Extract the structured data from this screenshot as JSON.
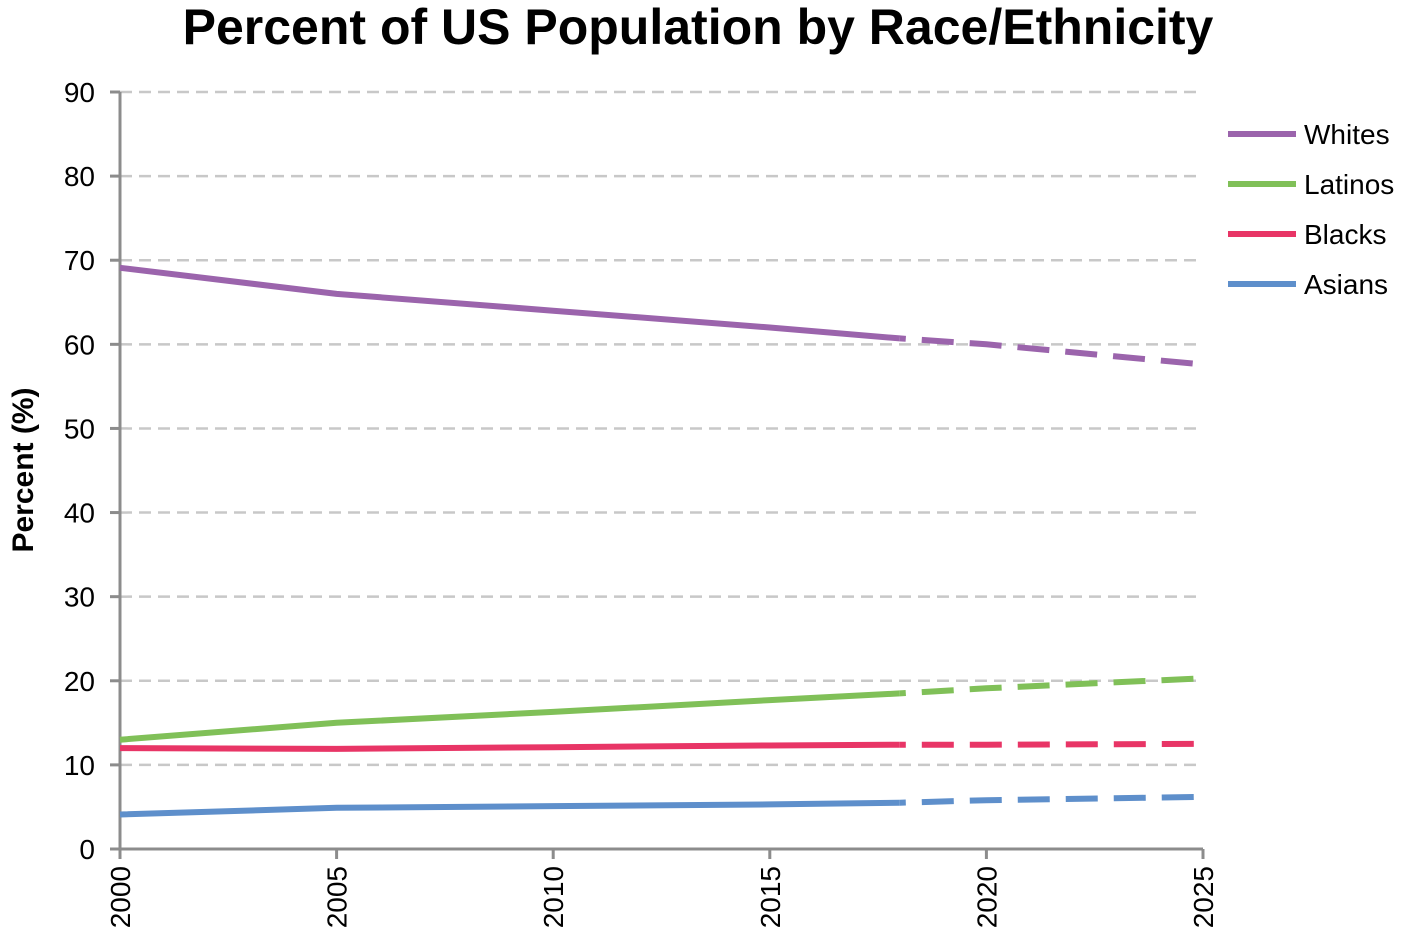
{
  "chart_data": {
    "type": "line",
    "title": "Percent of US Population by Race/Ethnicity",
    "xlabel": "",
    "ylabel": "Percent (%)",
    "xlim": [
      2000,
      2025
    ],
    "ylim": [
      0,
      90
    ],
    "x_ticks": [
      2000,
      2005,
      2010,
      2015,
      2020,
      2025
    ],
    "y_ticks": [
      0,
      10,
      20,
      30,
      40,
      50,
      60,
      70,
      80,
      90
    ],
    "grid": "horizontal-dashed",
    "legend_placement": "top-right",
    "projection_start": 2018,
    "series": [
      {
        "name": "Whites",
        "color": "#9B64AC",
        "x": [
          2000,
          2005,
          2010,
          2015,
          2018,
          2020,
          2025
        ],
        "values": [
          69.1,
          66.0,
          64.0,
          62.0,
          60.7,
          60.0,
          57.6
        ]
      },
      {
        "name": "Latinos",
        "color": "#80C058",
        "x": [
          2000,
          2005,
          2010,
          2015,
          2018,
          2020,
          2025
        ],
        "values": [
          13.0,
          15.0,
          16.3,
          17.7,
          18.5,
          19.1,
          20.3
        ]
      },
      {
        "name": "Blacks",
        "color": "#E83566",
        "x": [
          2000,
          2005,
          2010,
          2015,
          2018,
          2020,
          2025
        ],
        "values": [
          12.0,
          11.9,
          12.1,
          12.3,
          12.4,
          12.4,
          12.5
        ]
      },
      {
        "name": "Asians",
        "color": "#5E8FCB",
        "x": [
          2000,
          2005,
          2010,
          2015,
          2018,
          2020,
          2025
        ],
        "values": [
          4.1,
          4.9,
          5.1,
          5.3,
          5.5,
          5.8,
          6.2
        ]
      }
    ]
  }
}
